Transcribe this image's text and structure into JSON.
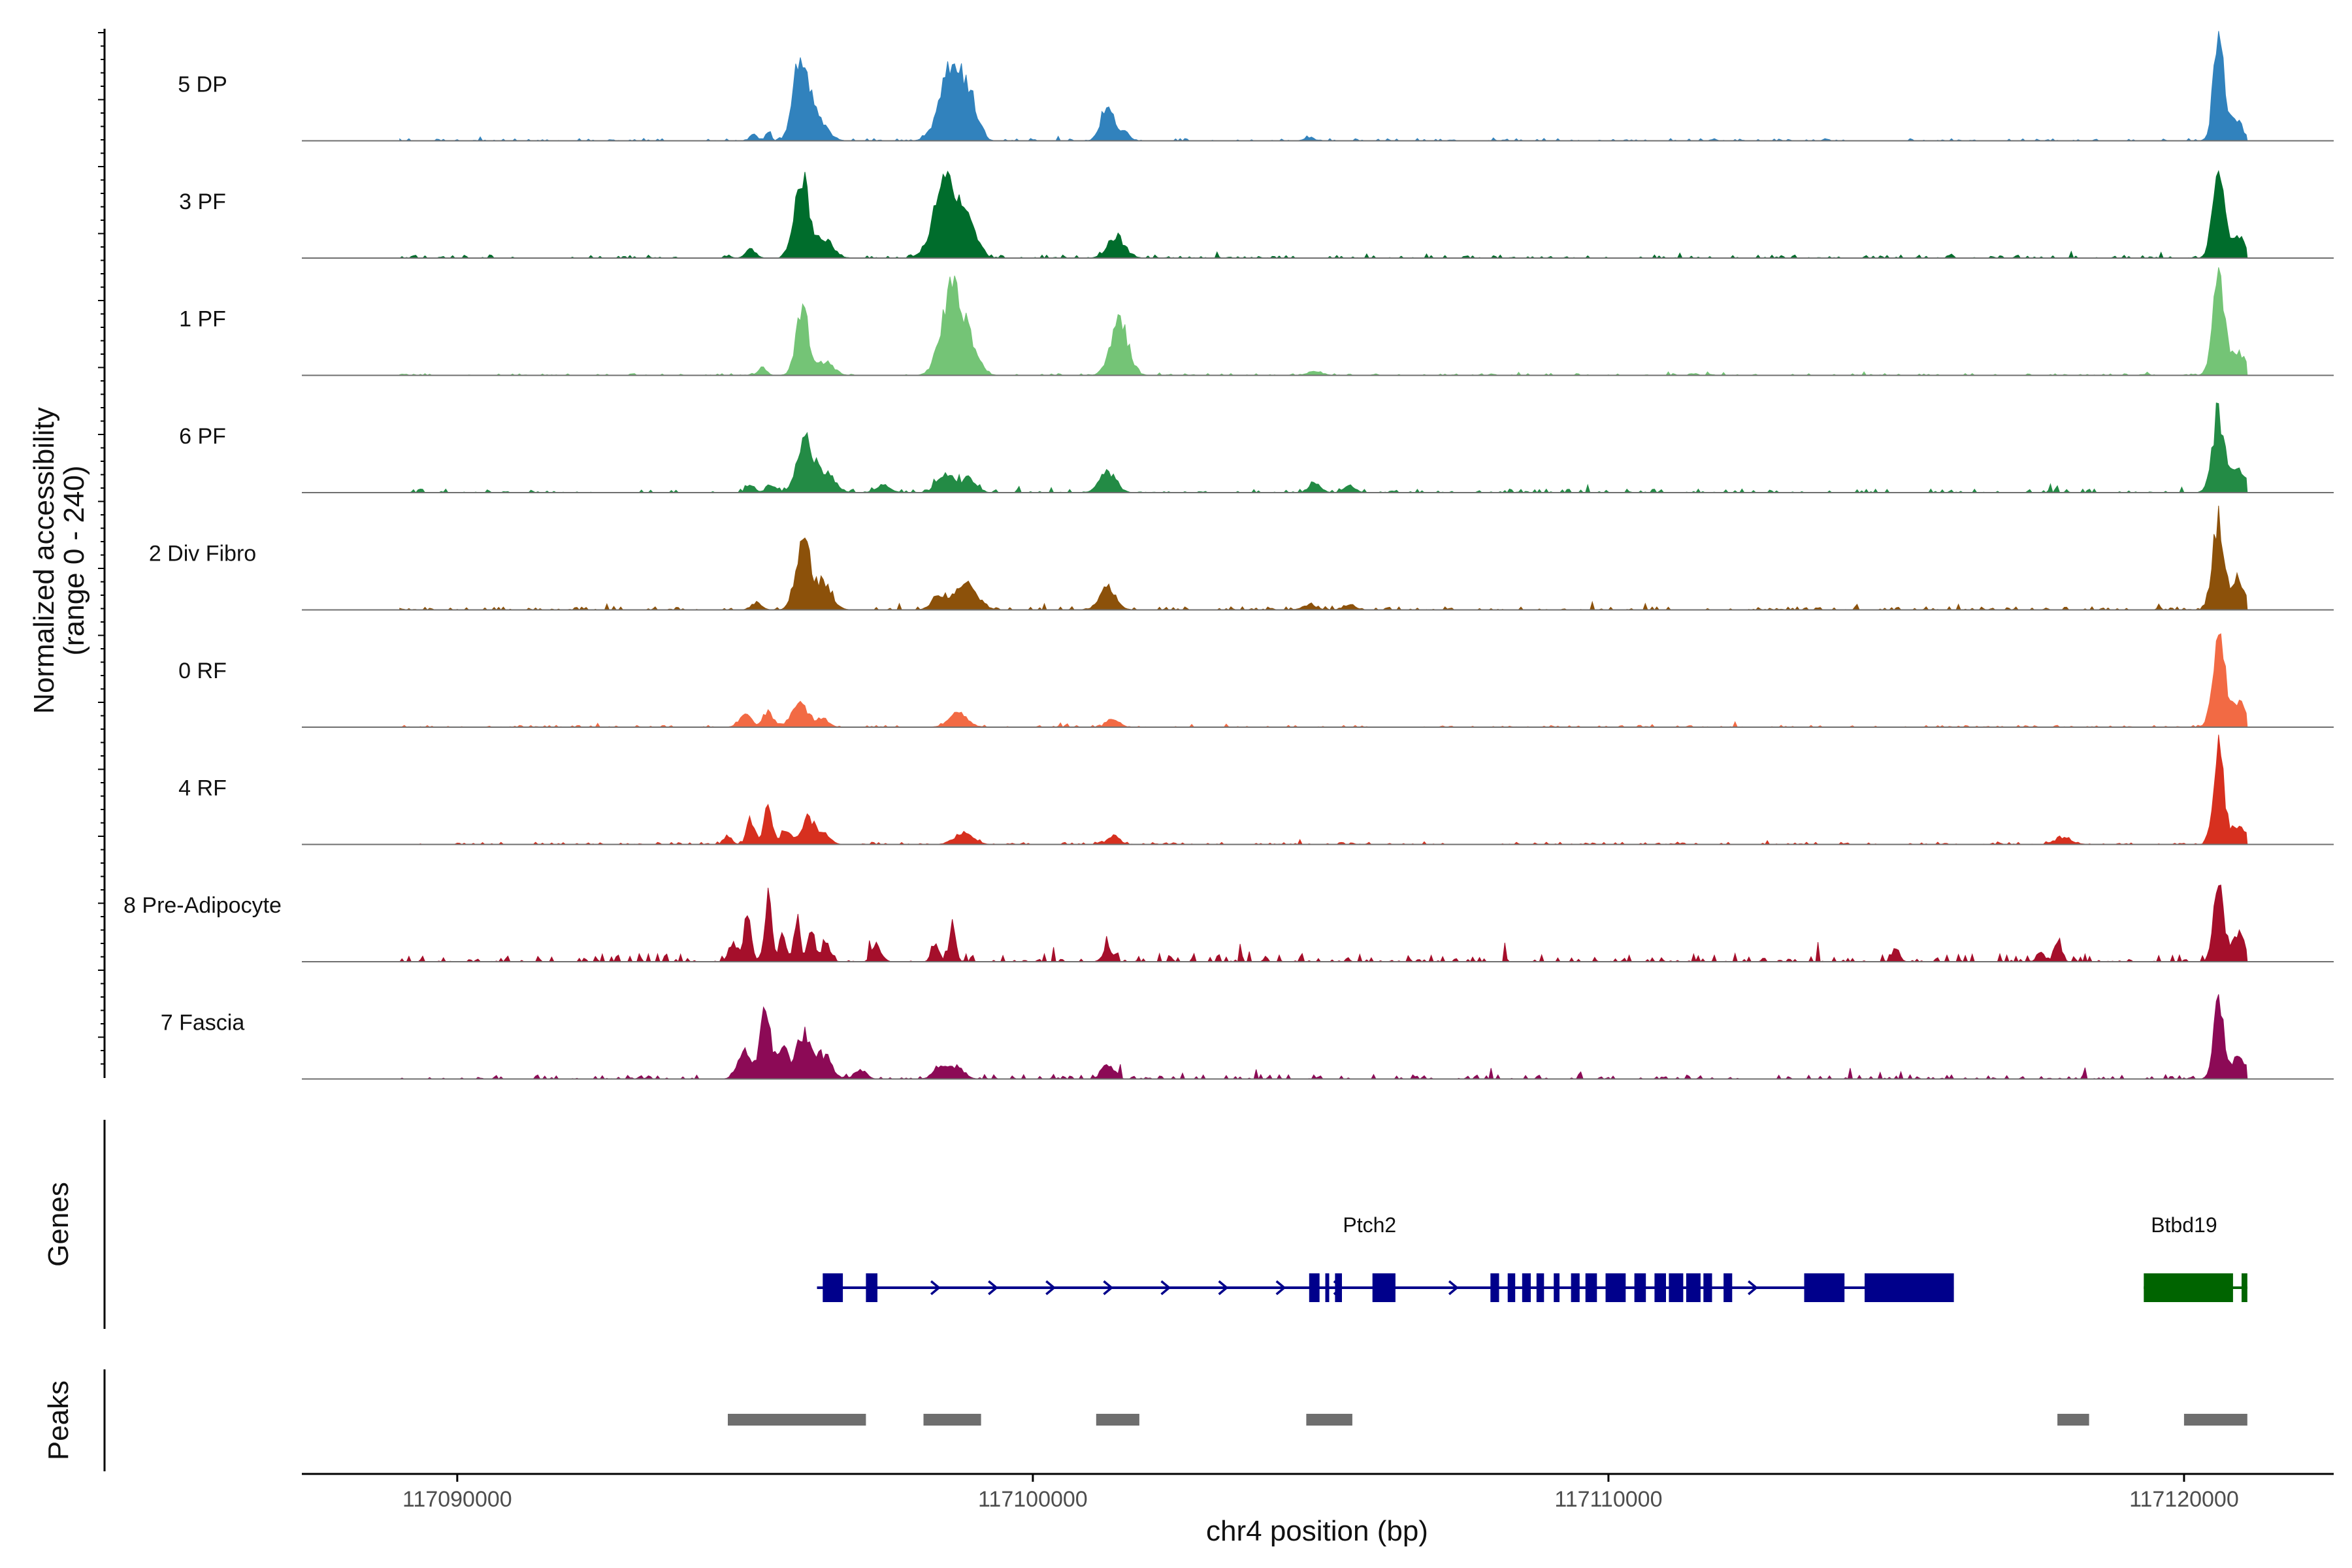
{
  "chart_data": {
    "type": "area",
    "title": "",
    "xlabel": "chr4 position (bp)",
    "ylabel_line1": "Normalized accessibility",
    "ylabel_line2": "(range 0 - 240)",
    "y_range": [
      0,
      240
    ],
    "xlim": [
      117087300,
      117122600
    ],
    "x_ticks": [
      117090000,
      117100000,
      117110000,
      117120000
    ],
    "x_tick_labels": [
      "117090000",
      "117100000",
      "117110000",
      "117120000"
    ],
    "signal_range": [
      117089000,
      117121100
    ],
    "tracks": [
      {
        "name": "5 DP",
        "color": "#3182bd",
        "peaks": [
          [
            117095150,
            14,
            60
          ],
          [
            117095400,
            23,
            40
          ],
          [
            117095980,
            195,
            130
          ],
          [
            117096300,
            40,
            150
          ],
          [
            117098600,
            175,
            200
          ],
          [
            117098950,
            60,
            120
          ],
          [
            117101300,
            80,
            110
          ],
          [
            117101600,
            18,
            80
          ],
          [
            117104800,
            8,
            80
          ],
          [
            117120600,
            215,
            90
          ],
          [
            117120900,
            45,
            120
          ]
        ],
        "noise": 5,
        "seed": 11
      },
      {
        "name": "3 PF",
        "color": "#006d2c",
        "peaks": [
          [
            117094700,
            5,
            60
          ],
          [
            117095100,
            18,
            90
          ],
          [
            117095980,
            175,
            120
          ],
          [
            117096350,
            45,
            160
          ],
          [
            117098500,
            170,
            210
          ],
          [
            117098900,
            70,
            140
          ],
          [
            117101450,
            45,
            150
          ],
          [
            117120600,
            190,
            100
          ],
          [
            117120950,
            40,
            130
          ]
        ],
        "noise": 7,
        "seed": 23
      },
      {
        "name": "1 PF",
        "color": "#74c476",
        "peaks": [
          [
            117095300,
            18,
            70
          ],
          [
            117096000,
            140,
            110
          ],
          [
            117096400,
            30,
            140
          ],
          [
            117098600,
            190,
            180
          ],
          [
            117098950,
            50,
            140
          ],
          [
            117101500,
            120,
            150
          ],
          [
            117104900,
            10,
            120
          ],
          [
            117120600,
            230,
            100
          ],
          [
            117120950,
            50,
            120
          ]
        ],
        "noise": 4,
        "seed": 37
      },
      {
        "name": "6 PF",
        "color": "#238b45",
        "peaks": [
          [
            117095100,
            15,
            80
          ],
          [
            117095450,
            18,
            80
          ],
          [
            117096050,
            110,
            140
          ],
          [
            117096400,
            40,
            160
          ],
          [
            117097400,
            18,
            120
          ],
          [
            117098500,
            40,
            150
          ],
          [
            117098900,
            30,
            120
          ],
          [
            117101300,
            45,
            140
          ],
          [
            117104900,
            20,
            100
          ],
          [
            117105500,
            15,
            100
          ],
          [
            117120600,
            170,
            110
          ],
          [
            117120950,
            50,
            120
          ]
        ],
        "noise": 8,
        "seed": 49
      },
      {
        "name": "2 Div Fibro",
        "color": "#8c510a",
        "peaks": [
          [
            117095200,
            16,
            90
          ],
          [
            117096000,
            155,
            120
          ],
          [
            117096350,
            60,
            150
          ],
          [
            117098400,
            30,
            140
          ],
          [
            117098850,
            60,
            180
          ],
          [
            117101300,
            50,
            140
          ],
          [
            117104800,
            10,
            120
          ],
          [
            117105500,
            12,
            100
          ],
          [
            117120600,
            200,
            100
          ],
          [
            117120950,
            60,
            120
          ]
        ],
        "noise": 7,
        "seed": 61
      },
      {
        "name": "0 RF",
        "color": "#f26a44",
        "peaks": [
          [
            117095000,
            28,
            100
          ],
          [
            117095400,
            34,
            90
          ],
          [
            117095950,
            55,
            140
          ],
          [
            117096350,
            20,
            100
          ],
          [
            117098700,
            30,
            160
          ],
          [
            117101400,
            20,
            100
          ],
          [
            117120600,
            215,
            100
          ],
          [
            117120950,
            60,
            120
          ]
        ],
        "noise": 4,
        "seed": 73
      },
      {
        "name": "4 RF",
        "color": "#d7301f",
        "peaks": [
          [
            117094700,
            18,
            70
          ],
          [
            117095100,
            55,
            70
          ],
          [
            117095400,
            80,
            70
          ],
          [
            117095700,
            30,
            90
          ],
          [
            117096100,
            60,
            120
          ],
          [
            117096400,
            20,
            100
          ],
          [
            117098800,
            25,
            160
          ],
          [
            117101400,
            20,
            100
          ],
          [
            117117900,
            14,
            150
          ],
          [
            117120600,
            205,
            90
          ],
          [
            117120950,
            40,
            120
          ]
        ],
        "noise": 5,
        "seed": 83
      },
      {
        "name": "8 Pre-Adipocyte",
        "color": "#a50f2b",
        "peaks": [
          [
            117094800,
            40,
            80
          ],
          [
            117095050,
            110,
            60
          ],
          [
            117095400,
            140,
            60
          ],
          [
            117095650,
            60,
            60
          ],
          [
            117095900,
            80,
            60
          ],
          [
            117096150,
            70,
            60
          ],
          [
            117096400,
            40,
            80
          ],
          [
            117097300,
            30,
            80
          ],
          [
            117098300,
            45,
            60
          ],
          [
            117098600,
            70,
            60
          ],
          [
            117101300,
            30,
            80
          ],
          [
            117115000,
            35,
            60
          ],
          [
            117117500,
            25,
            60
          ],
          [
            117117800,
            40,
            60
          ],
          [
            117120600,
            200,
            80
          ],
          [
            117120950,
            70,
            100
          ]
        ],
        "noise": 18,
        "seed": 97
      },
      {
        "name": "7 Fascia",
        "color": "#8c0a56",
        "peaks": [
          [
            117095000,
            60,
            120
          ],
          [
            117095350,
            150,
            90
          ],
          [
            117095650,
            70,
            90
          ],
          [
            117096000,
            100,
            120
          ],
          [
            117096350,
            50,
            140
          ],
          [
            117097000,
            20,
            100
          ],
          [
            117098400,
            30,
            120
          ],
          [
            117098700,
            25,
            120
          ],
          [
            117101300,
            35,
            100
          ],
          [
            117120600,
            160,
            90
          ],
          [
            117120950,
            50,
            120
          ]
        ],
        "noise": 10,
        "seed": 101
      }
    ],
    "genes": [
      {
        "name": "Ptch2",
        "strand": "+",
        "color": "#00008b",
        "start": 117096250,
        "end": 117116000,
        "exons": [
          [
            117096350,
            117096700
          ],
          [
            117097100,
            117097300
          ],
          [
            117104800,
            117104980
          ],
          [
            117105080,
            117105120
          ],
          [
            117105250,
            117105370
          ],
          [
            117105900,
            117106300
          ],
          [
            117107950,
            117108100
          ],
          [
            117108250,
            117108380
          ],
          [
            117108500,
            117108650
          ],
          [
            117108750,
            117108880
          ],
          [
            117109050,
            117109150
          ],
          [
            117109350,
            117109500
          ],
          [
            117109600,
            117109800
          ],
          [
            117109950,
            117110300
          ],
          [
            117110450,
            117110650
          ],
          [
            117110800,
            117111000
          ],
          [
            117111050,
            117111300
          ],
          [
            117111350,
            117111600
          ],
          [
            117111650,
            117111800
          ],
          [
            117112000,
            117112150
          ],
          [
            117113400,
            117114100
          ],
          [
            117114450,
            117116000
          ]
        ],
        "arrows": [
          117096500,
          117098300,
          117099300,
          117100300,
          117101300,
          117102300,
          117103300,
          117104300,
          117105300,
          117107300,
          117112500
        ]
      },
      {
        "name": "Btbd19",
        "strand": "+",
        "color": "#006400",
        "start": 117119300,
        "end": 117121100,
        "exons": [
          [
            117119300,
            117120850
          ],
          [
            117121000,
            117121100
          ]
        ],
        "arrows": []
      }
    ],
    "peak_regions": [
      [
        117094700,
        117097100
      ],
      [
        117098100,
        117099100
      ],
      [
        117101100,
        117101850
      ],
      [
        117104750,
        117105550
      ],
      [
        117117800,
        117118350
      ],
      [
        117120000,
        117121100
      ]
    ],
    "peak_color": "#6e6e6e",
    "panel_labels": {
      "genes": "Genes",
      "peaks": "Peaks"
    }
  }
}
